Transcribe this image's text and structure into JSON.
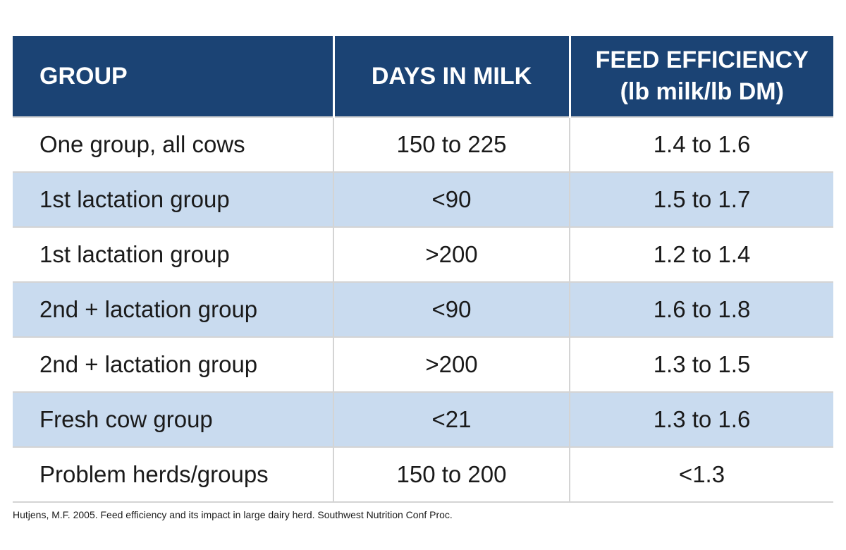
{
  "table": {
    "headers": {
      "group": "GROUP",
      "days": "DAYS IN MILK",
      "efficiency_line1": "FEED EFFICIENCY",
      "efficiency_line2": "(lb milk/lb DM)"
    },
    "rows": [
      {
        "group": "One group, all cows",
        "days": "150 to 225",
        "efficiency": "1.4 to 1.6",
        "shaded": false
      },
      {
        "group": "1st lactation group",
        "days": "<90",
        "efficiency": "1.5 to 1.7",
        "shaded": true
      },
      {
        "group": "1st lactation group",
        "days": ">200",
        "efficiency": "1.2 to 1.4",
        "shaded": false
      },
      {
        "group": "2nd + lactation group",
        "days": "<90",
        "efficiency": "1.6 to 1.8",
        "shaded": true
      },
      {
        "group": "2nd + lactation group",
        "days": ">200",
        "efficiency": "1.3 to 1.5",
        "shaded": false
      },
      {
        "group": "Fresh cow group",
        "days": "<21",
        "efficiency": "1.3 to 1.6",
        "shaded": true
      },
      {
        "group": "Problem herds/groups",
        "days": "150 to 200",
        "efficiency": "<1.3",
        "shaded": false
      }
    ]
  },
  "source": "Hutjens, M.F. 2005. Feed efficiency and its impact in large dairy herd. Southwest Nutrition Conf Proc.",
  "colors": {
    "header_bg": "#1b4374",
    "header_text": "#ffffff",
    "shaded_row": "#c9dbef",
    "plain_row": "#ffffff"
  }
}
